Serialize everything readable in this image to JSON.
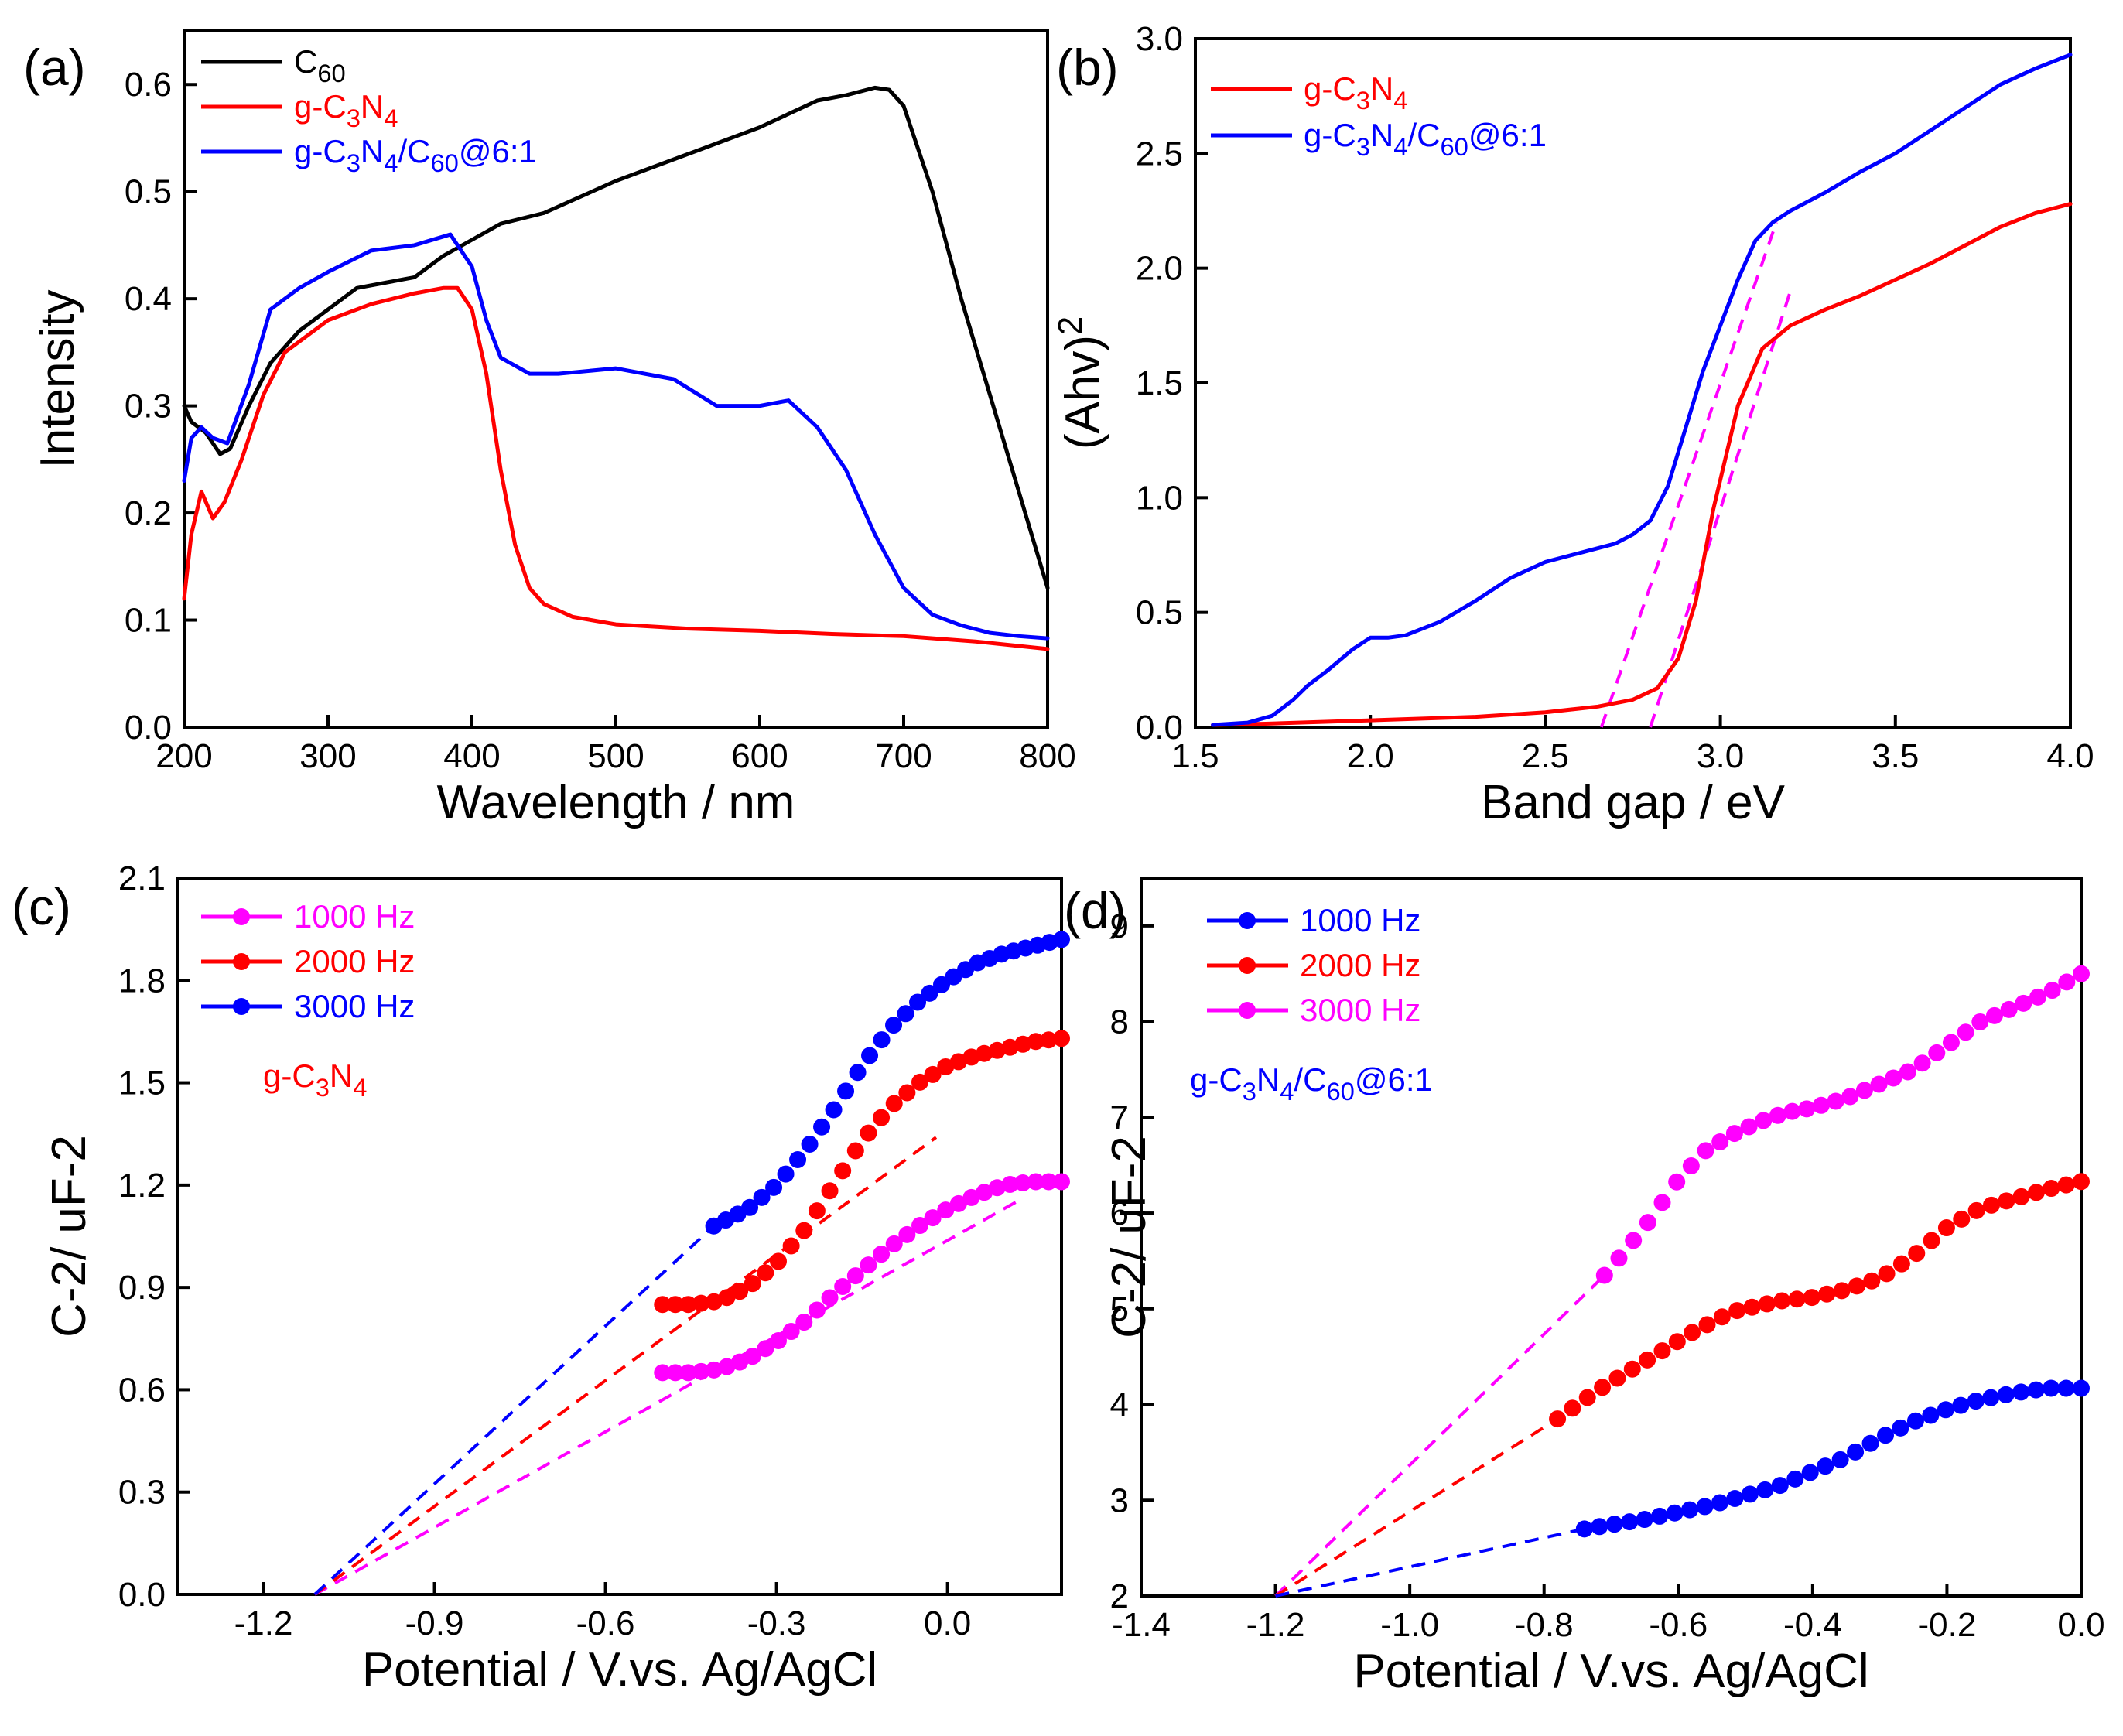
{
  "chart_data": [
    {
      "id": "a",
      "type": "line",
      "panel_label": "(a)",
      "xlabel": "Wavelength / nm",
      "ylabel": "Intensity",
      "xlim": [
        200,
        800
      ],
      "ylim": [
        0,
        0.65
      ],
      "xticks": [
        200,
        300,
        400,
        500,
        600,
        700,
        800
      ],
      "xtick_labels": [
        "200",
        "300",
        "400",
        "500",
        "600",
        "700",
        "800"
      ],
      "yticks": [
        0,
        0.1,
        0.2,
        0.3,
        0.4,
        0.5,
        0.6
      ],
      "ytick_labels": [
        "0.0",
        "0.1",
        "0.2",
        "0.3",
        "0.4",
        "0.5",
        "0.6"
      ],
      "legend_position": "top-left",
      "series": [
        {
          "name": "C60",
          "label": "C",
          "sub": "60",
          "color": "#000000",
          "x": [
            200,
            205,
            215,
            225,
            232,
            245,
            260,
            280,
            300,
            320,
            340,
            360,
            380,
            400,
            420,
            450,
            500,
            550,
            600,
            640,
            660,
            680,
            690,
            700,
            720,
            740,
            760,
            780,
            800
          ],
          "y": [
            0.3,
            0.285,
            0.275,
            0.255,
            0.26,
            0.3,
            0.34,
            0.37,
            0.39,
            0.41,
            0.415,
            0.42,
            0.44,
            0.455,
            0.47,
            0.48,
            0.51,
            0.535,
            0.56,
            0.585,
            0.59,
            0.597,
            0.595,
            0.58,
            0.5,
            0.4,
            0.31,
            0.22,
            0.13
          ]
        },
        {
          "name": "g-C3N4",
          "label": "g-C",
          "sub1": "3",
          "mid": "N",
          "sub2": "4",
          "color": "#ff0000",
          "x": [
            200,
            205,
            212,
            220,
            228,
            240,
            255,
            270,
            300,
            330,
            360,
            380,
            390,
            400,
            410,
            420,
            430,
            440,
            450,
            470,
            500,
            550,
            600,
            650,
            700,
            750,
            800
          ],
          "y": [
            0.12,
            0.18,
            0.22,
            0.195,
            0.21,
            0.25,
            0.31,
            0.35,
            0.38,
            0.395,
            0.405,
            0.41,
            0.41,
            0.39,
            0.33,
            0.24,
            0.17,
            0.13,
            0.115,
            0.103,
            0.096,
            0.092,
            0.09,
            0.087,
            0.085,
            0.08,
            0.073
          ]
        },
        {
          "name": "g-C3N4/C60@6:1",
          "label": "g-C",
          "sub1": "3",
          "mid": "N",
          "sub2": "4",
          "mid2": "/C",
          "sub3": "60",
          "tail": "@6:1",
          "color": "#0000ff",
          "x": [
            200,
            205,
            212,
            220,
            230,
            245,
            260,
            280,
            300,
            330,
            360,
            385,
            400,
            410,
            420,
            440,
            460,
            500,
            540,
            570,
            600,
            620,
            640,
            660,
            680,
            700,
            720,
            740,
            760,
            780,
            800
          ],
          "y": [
            0.23,
            0.27,
            0.28,
            0.27,
            0.265,
            0.32,
            0.39,
            0.41,
            0.425,
            0.445,
            0.45,
            0.46,
            0.43,
            0.38,
            0.345,
            0.33,
            0.33,
            0.335,
            0.325,
            0.3,
            0.3,
            0.305,
            0.28,
            0.24,
            0.18,
            0.13,
            0.105,
            0.095,
            0.088,
            0.085,
            0.083
          ]
        }
      ]
    },
    {
      "id": "b",
      "type": "line",
      "panel_label": "(b)",
      "xlabel": "Band gap / eV",
      "ylabel": "(Ahv)",
      "ylabel_sup": "2",
      "xlim": [
        1.5,
        4.0
      ],
      "ylim": [
        0,
        3.0
      ],
      "xticks": [
        1.5,
        2.0,
        2.5,
        3.0,
        3.5,
        4.0
      ],
      "xtick_labels": [
        "1.5",
        "2.0",
        "2.5",
        "3.0",
        "3.5",
        "4.0"
      ],
      "yticks": [
        0,
        0.5,
        1.0,
        1.5,
        2.0,
        2.5,
        3.0
      ],
      "ytick_labels": [
        "0.0",
        "0.5",
        "1.0",
        "1.5",
        "2.0",
        "2.5",
        "3.0"
      ],
      "legend_position": "top-left",
      "series": [
        {
          "name": "g-C3N4",
          "label": "g-C",
          "sub1": "3",
          "mid": "N",
          "sub2": "4",
          "color": "#ff0000",
          "x": [
            1.55,
            1.7,
            2.0,
            2.3,
            2.5,
            2.65,
            2.75,
            2.82,
            2.88,
            2.93,
            2.98,
            3.05,
            3.12,
            3.2,
            3.3,
            3.4,
            3.5,
            3.6,
            3.7,
            3.8,
            3.9,
            4.0
          ],
          "y": [
            0.01,
            0.015,
            0.03,
            0.045,
            0.065,
            0.09,
            0.12,
            0.17,
            0.3,
            0.55,
            0.95,
            1.4,
            1.65,
            1.75,
            1.82,
            1.88,
            1.95,
            2.02,
            2.1,
            2.18,
            2.24,
            2.28
          ]
        },
        {
          "name": "g-C3N4/C60@6:1",
          "label": "g-C",
          "sub1": "3",
          "mid": "N",
          "sub2": "4",
          "mid2": "/C",
          "sub3": "60",
          "tail": "@6:1",
          "color": "#0000ff",
          "x": [
            1.55,
            1.65,
            1.72,
            1.78,
            1.82,
            1.88,
            1.95,
            2.0,
            2.05,
            2.1,
            2.2,
            2.3,
            2.4,
            2.5,
            2.6,
            2.7,
            2.75,
            2.8,
            2.85,
            2.9,
            2.95,
            3.0,
            3.05,
            3.1,
            3.15,
            3.2,
            3.3,
            3.4,
            3.5,
            3.6,
            3.7,
            3.8,
            3.9,
            4.0
          ],
          "y": [
            0.01,
            0.02,
            0.05,
            0.12,
            0.18,
            0.25,
            0.34,
            0.39,
            0.39,
            0.4,
            0.46,
            0.55,
            0.65,
            0.72,
            0.76,
            0.8,
            0.84,
            0.9,
            1.05,
            1.3,
            1.55,
            1.75,
            1.95,
            2.12,
            2.2,
            2.25,
            2.33,
            2.42,
            2.5,
            2.6,
            2.7,
            2.8,
            2.87,
            2.93
          ]
        }
      ],
      "fits": [
        {
          "color": "#ff00ff",
          "x": [
            2.66,
            3.16
          ],
          "y": [
            0,
            2.2
          ]
        },
        {
          "color": "#ff00ff",
          "x": [
            2.8,
            3.2
          ],
          "y": [
            0,
            1.9
          ]
        }
      ]
    },
    {
      "id": "c",
      "type": "scatter",
      "panel_label": "(c)",
      "xlabel": "Potential / V.vs. Ag/AgCl",
      "ylabel": "C-2/ uF-2",
      "xlim": [
        -1.35,
        0.2
      ],
      "ylim": [
        0,
        2.1
      ],
      "xticks": [
        -1.2,
        -0.9,
        -0.6,
        -0.3,
        0.0
      ],
      "xtick_labels": [
        "-1.2",
        "-0.9",
        "-0.6",
        "-0.3",
        "0.0"
      ],
      "yticks": [
        0,
        0.3,
        0.6,
        0.9,
        1.2,
        1.5,
        1.8,
        2.1
      ],
      "ytick_labels": [
        "0.0",
        "0.3",
        "0.6",
        "0.9",
        "1.2",
        "1.5",
        "1.8",
        "2.1"
      ],
      "legend_position": "top-left",
      "annotation": {
        "label": "g-C",
        "sub1": "3",
        "mid": "N",
        "sub2": "4",
        "color": "#ff0000"
      },
      "series": [
        {
          "name": "1000 Hz",
          "color": "#ff00ff",
          "x_start": -0.5,
          "x_end": 0.2,
          "n": 32,
          "curve_x": [
            -0.5,
            -0.45,
            -0.4,
            -0.35,
            -0.3,
            -0.25,
            -0.2,
            -0.15,
            -0.1,
            -0.05,
            0.0,
            0.05,
            0.1,
            0.15,
            0.2
          ],
          "curve_y": [
            0.65,
            0.65,
            0.66,
            0.69,
            0.74,
            0.8,
            0.88,
            0.95,
            1.02,
            1.08,
            1.13,
            1.17,
            1.2,
            1.21,
            1.21
          ]
        },
        {
          "name": "2000 Hz",
          "color": "#ff0000",
          "x_start": -0.5,
          "x_end": 0.2,
          "n": 32,
          "curve_x": [
            -0.5,
            -0.45,
            -0.4,
            -0.35,
            -0.3,
            -0.25,
            -0.2,
            -0.15,
            -0.1,
            -0.05,
            0.0,
            0.05,
            0.1,
            0.15,
            0.2
          ],
          "curve_y": [
            0.85,
            0.85,
            0.86,
            0.9,
            0.97,
            1.07,
            1.2,
            1.33,
            1.43,
            1.5,
            1.55,
            1.58,
            1.6,
            1.62,
            1.63
          ]
        },
        {
          "name": "3000 Hz",
          "color": "#0000ff",
          "x_start": -0.41,
          "x_end": 0.2,
          "n": 30,
          "curve_x": [
            -0.41,
            -0.35,
            -0.3,
            -0.25,
            -0.2,
            -0.15,
            -0.1,
            -0.05,
            0.0,
            0.05,
            0.1,
            0.15,
            0.2
          ],
          "curve_y": [
            1.08,
            1.13,
            1.2,
            1.3,
            1.42,
            1.55,
            1.66,
            1.74,
            1.8,
            1.85,
            1.88,
            1.9,
            1.92
          ]
        }
      ],
      "fits": [
        {
          "color": "#ff00ff",
          "x": [
            -1.11,
            0.12
          ],
          "y": [
            0,
            1.15
          ]
        },
        {
          "color": "#ff0000",
          "x": [
            -1.11,
            -0.02
          ],
          "y": [
            0,
            1.34
          ]
        },
        {
          "color": "#0000ff",
          "x": [
            -1.11,
            -0.41
          ],
          "y": [
            0,
            1.08
          ]
        }
      ]
    },
    {
      "id": "d",
      "type": "scatter",
      "panel_label": "(d)",
      "xlabel": "Potential / V.vs. Ag/AgCl",
      "ylabel": "C-2/ uF-2",
      "xlim": [
        -1.4,
        0.0
      ],
      "ylim": [
        2,
        9.5
      ],
      "xticks": [
        -1.4,
        -1.2,
        -1.0,
        -0.8,
        -0.6,
        -0.4,
        -0.2,
        0.0
      ],
      "xtick_labels": [
        "-1.4",
        "-1.2",
        "-1.0",
        "-0.8",
        "-0.6",
        "-0.4",
        "-0.2",
        "0.0"
      ],
      "yticks": [
        2,
        3,
        4,
        5,
        6,
        7,
        8,
        9
      ],
      "ytick_labels": [
        "2",
        "3",
        "4",
        "5",
        "6",
        "7",
        "8",
        "9"
      ],
      "legend_position": "top-left",
      "annotation": {
        "label": "g-C",
        "sub1": "3",
        "mid": "N",
        "sub2": "4",
        "mid2": "/C",
        "sub3": "60",
        "tail": "@6:1",
        "color": "#0000ff"
      },
      "series": [
        {
          "name": "1000 Hz",
          "color": "#0000ff",
          "x_start": -0.74,
          "x_end": 0.0,
          "n": 34,
          "curve_x": [
            -0.74,
            -0.65,
            -0.55,
            -0.45,
            -0.35,
            -0.3,
            -0.25,
            -0.2,
            -0.15,
            -0.1,
            -0.05,
            0.0
          ],
          "curve_y": [
            2.7,
            2.8,
            2.95,
            3.15,
            3.45,
            3.65,
            3.82,
            3.95,
            4.05,
            4.12,
            4.17,
            4.17
          ]
        },
        {
          "name": "2000 Hz",
          "color": "#ff0000",
          "x_start": -0.78,
          "x_end": 0.0,
          "n": 36,
          "curve_x": [
            -0.78,
            -0.72,
            -0.65,
            -0.58,
            -0.52,
            -0.45,
            -0.4,
            -0.35,
            -0.3,
            -0.25,
            -0.2,
            -0.15,
            -0.1,
            -0.05,
            0.0
          ],
          "curve_y": [
            3.85,
            4.15,
            4.45,
            4.75,
            4.97,
            5.08,
            5.12,
            5.2,
            5.32,
            5.55,
            5.85,
            6.05,
            6.15,
            6.25,
            6.33
          ]
        },
        {
          "name": "3000 Hz",
          "color": "#ff00ff",
          "x_start": -0.71,
          "x_end": 0.0,
          "n": 34,
          "curve_x": [
            -0.71,
            -0.68,
            -0.64,
            -0.6,
            -0.56,
            -0.52,
            -0.48,
            -0.44,
            -0.4,
            -0.35,
            -0.3,
            -0.25,
            -0.2,
            -0.15,
            -0.1,
            -0.05,
            0.0
          ],
          "curve_y": [
            5.35,
            5.6,
            5.95,
            6.35,
            6.65,
            6.82,
            6.95,
            7.05,
            7.1,
            7.2,
            7.35,
            7.5,
            7.75,
            8.0,
            8.15,
            8.3,
            8.5
          ]
        }
      ],
      "fits": [
        {
          "color": "#ff00ff",
          "x": [
            -1.2,
            -0.71
          ],
          "y": [
            2,
            5.35
          ]
        },
        {
          "color": "#ff0000",
          "x": [
            -1.2,
            -0.78
          ],
          "y": [
            2,
            3.85
          ]
        },
        {
          "color": "#0000ff",
          "x": [
            -1.2,
            -0.74
          ],
          "y": [
            2,
            2.7
          ]
        }
      ]
    }
  ]
}
